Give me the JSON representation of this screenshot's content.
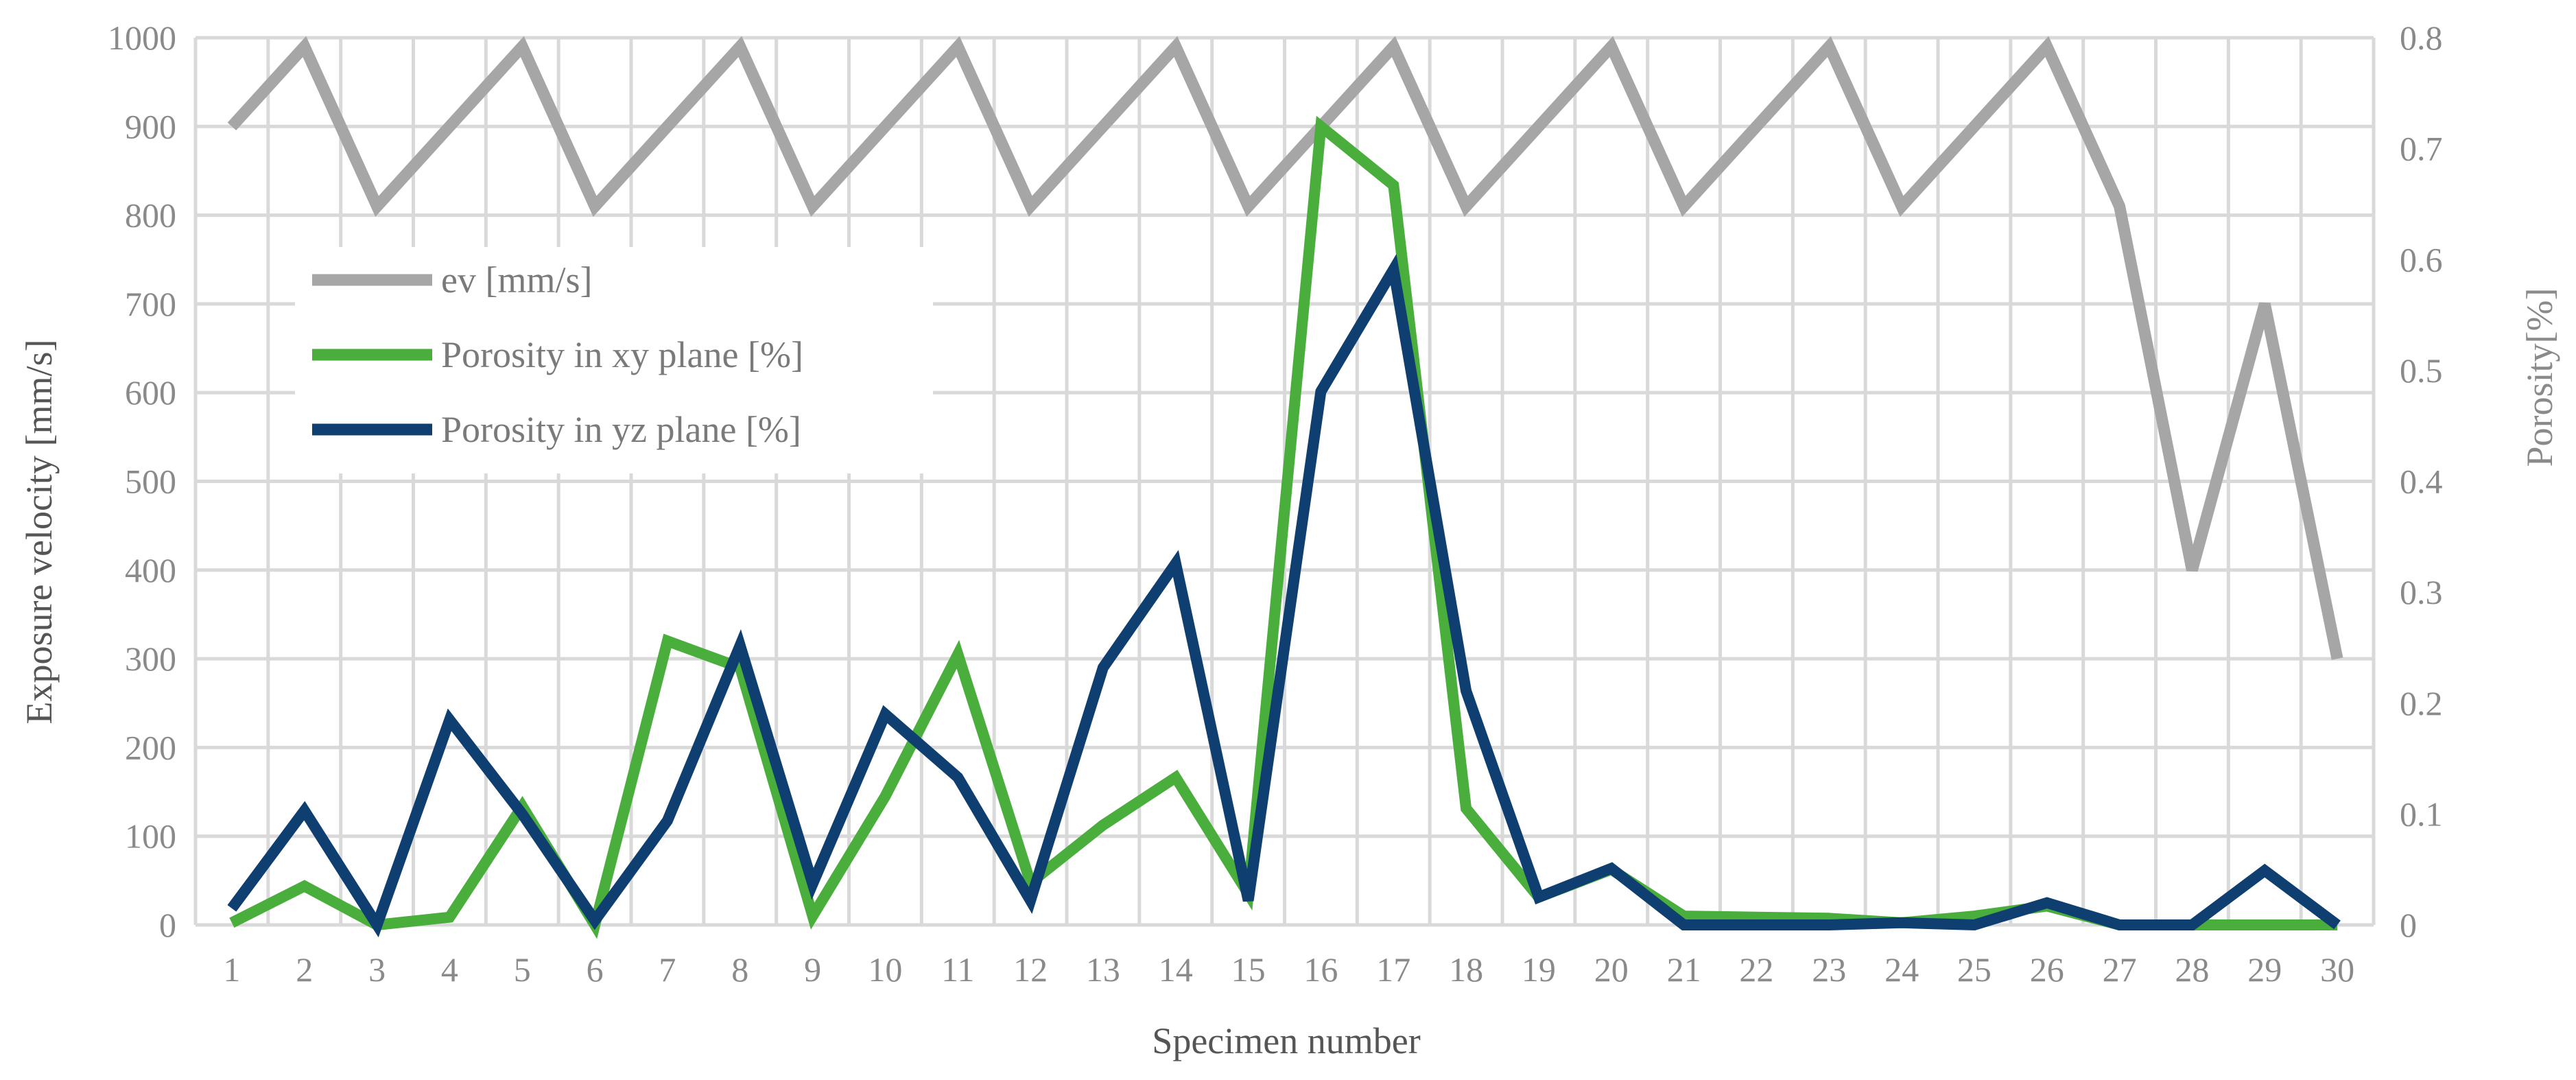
{
  "chart_data": {
    "type": "line",
    "xlabel": "Specimen number",
    "ylabel_left": "Exposure velocity [mm/s]",
    "ylabel_right": "Porosity[%]",
    "x": [
      1,
      2,
      3,
      4,
      5,
      6,
      7,
      8,
      9,
      10,
      11,
      12,
      13,
      14,
      15,
      16,
      17,
      18,
      19,
      20,
      21,
      22,
      23,
      24,
      25,
      26,
      27,
      28,
      29,
      30
    ],
    "ylim_left": [
      0,
      1000
    ],
    "yticks_left": [
      0,
      100,
      200,
      300,
      400,
      500,
      600,
      700,
      800,
      900,
      1000
    ],
    "ylim_right": [
      0,
      0.8
    ],
    "yticks_right": [
      "0",
      "0.1",
      "0.2",
      "0.3",
      "0.4",
      "0.5",
      "0.6",
      "0.7",
      "0.8"
    ],
    "grid": true,
    "legend_position": "upper-left",
    "series": [
      {
        "name": "ev [mm/s]",
        "axis": "left",
        "color": "#a6a6a6",
        "values": [
          900,
          990,
          810,
          900,
          990,
          810,
          900,
          990,
          810,
          900,
          990,
          810,
          900,
          990,
          810,
          900,
          990,
          810,
          900,
          990,
          810,
          900,
          990,
          810,
          900,
          990,
          810,
          400,
          700,
          300
        ]
      },
      {
        "name": "Porosity in xy plane [%]",
        "axis": "right",
        "color": "#4aae3c",
        "values": [
          0.002,
          0.035,
          0.0,
          0.007,
          0.107,
          0.0,
          0.256,
          0.232,
          0.008,
          0.116,
          0.244,
          0.038,
          0.09,
          0.133,
          0.028,
          0.72,
          0.667,
          0.105,
          0.025,
          0.05,
          0.008,
          0.007,
          0.006,
          0.002,
          0.008,
          0.017,
          0.0,
          0.0,
          0.0,
          0.0
        ]
      },
      {
        "name": "Porosity in yz plane [%]",
        "axis": "right",
        "color": "#0e3f70",
        "values": [
          0.015,
          0.103,
          0.0,
          0.185,
          0.1,
          0.004,
          0.094,
          0.252,
          0.037,
          0.19,
          0.133,
          0.022,
          0.232,
          0.326,
          0.022,
          0.481,
          0.591,
          0.211,
          0.025,
          0.051,
          0.0,
          0.0,
          0.0,
          0.002,
          0.0,
          0.02,
          0.0,
          0.0,
          0.049,
          0.0
        ]
      }
    ]
  }
}
